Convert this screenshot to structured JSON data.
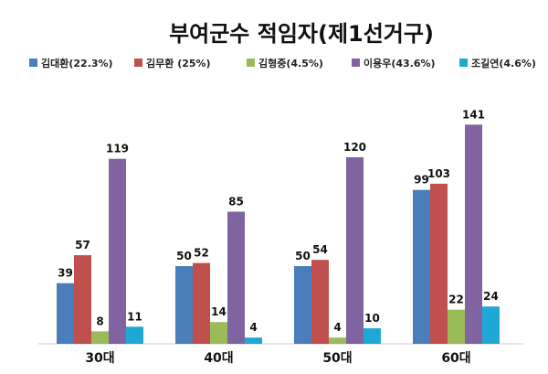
{
  "chart_data": {
    "type": "bar",
    "title": "부여군수 적임자(제1선거구)",
    "categories": [
      "30대",
      "40대",
      "50대",
      "60대"
    ],
    "series": [
      {
        "name": "김대환(22.3%)",
        "color": "#4a7ebb",
        "values": [
          39,
          50,
          50,
          99
        ]
      },
      {
        "name": "김무환 (25%)",
        "color": "#c0504d",
        "values": [
          57,
          52,
          54,
          103
        ]
      },
      {
        "name": "김형중(4.5%)",
        "color": "#9bbb59",
        "values": [
          8,
          14,
          4,
          22
        ]
      },
      {
        "name": "이용우(43.6%)",
        "color": "#8064a2",
        "values": [
          119,
          85,
          120,
          141
        ]
      },
      {
        "name": "조길연(4.6%)",
        "color": "#1fa7d6",
        "values": [
          11,
          4,
          10,
          24
        ]
      }
    ],
    "ylim": [
      0,
      160
    ],
    "grid": false,
    "legend_position": "top"
  }
}
